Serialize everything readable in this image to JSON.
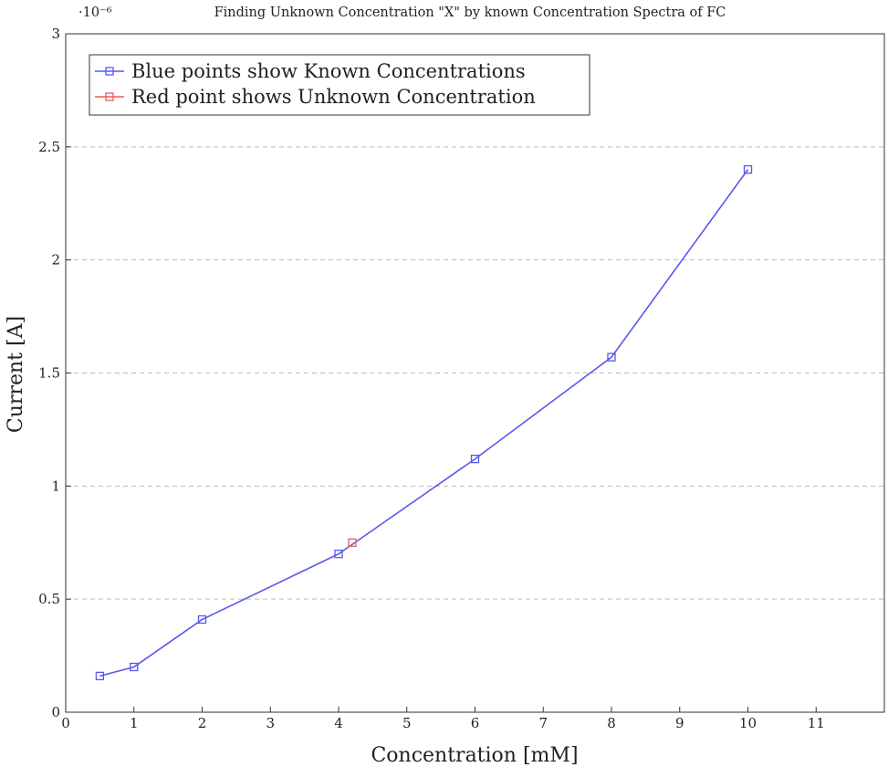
{
  "chart_data": {
    "type": "line",
    "title": "Finding Unknown Concentration \"X\" by known Concentration Spectra of FC",
    "scale_label": "·10⁻⁶",
    "xlabel": "Concentration [mM]",
    "ylabel": "Current [A]",
    "xlim": [
      0,
      12
    ],
    "ylim": [
      0,
      3
    ],
    "x_ticks": [
      "0",
      "1",
      "2",
      "3",
      "4",
      "5",
      "6",
      "7",
      "8",
      "9",
      "10",
      "11"
    ],
    "y_ticks": [
      "0",
      "0.5",
      "1",
      "1.5",
      "2",
      "2.5",
      "3"
    ],
    "grid": "horizontal dashed",
    "legend_position": "top-left",
    "series": [
      {
        "name": "Blue points show Known Concentrations",
        "color": "#5858f0",
        "marker": "square",
        "x": [
          0.5,
          1,
          2,
          4,
          6,
          8,
          10
        ],
        "y": [
          0.16,
          0.2,
          0.41,
          0.7,
          1.12,
          1.57,
          2.4
        ]
      },
      {
        "name": "Red point shows Unknown Concentration",
        "color": "#f05858",
        "marker": "square",
        "x": [
          4.2
        ],
        "y": [
          0.75
        ]
      }
    ]
  }
}
